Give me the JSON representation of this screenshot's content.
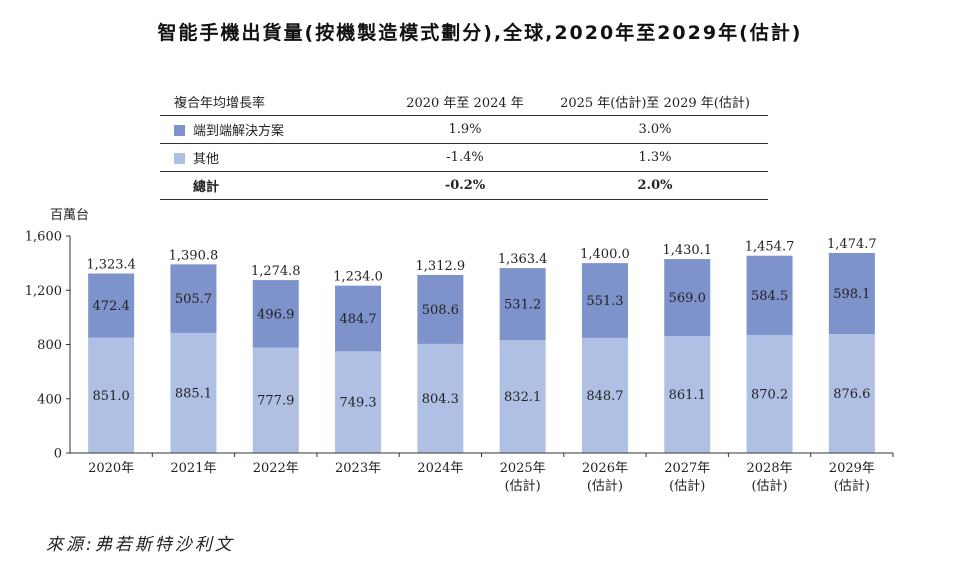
{
  "title": "智能手機出貨量(按機製造模式劃分),全球,2020年至2029年(估計)",
  "cagr_table": {
    "header": [
      "複合年均增長率",
      "2020 年至 2024 年",
      "2025 年(估計)至 2029 年(估計)"
    ],
    "rows": [
      {
        "label": "端到端解決方案",
        "v1": "1.9%",
        "v2": "3.0%"
      },
      {
        "label": "其他",
        "v1": "-1.4%",
        "v2": "1.3%"
      },
      {
        "label": "總計",
        "v1": "-0.2%",
        "v2": "2.0%"
      }
    ]
  },
  "source": "來源:弗若斯特沙利文",
  "colors": {
    "end_to_end": "#7e92cb",
    "other": "#b0c0e4",
    "axis": "#333333"
  },
  "chart_data": {
    "type": "bar",
    "stacked": true,
    "ylabel": "百萬台",
    "ylim": [
      0,
      1600
    ],
    "yticks": [
      0,
      400,
      800,
      1200,
      1600
    ],
    "ytick_labels": [
      "0",
      "400",
      "800",
      "1,200",
      "1,600"
    ],
    "categories": [
      "2020年",
      "2021年",
      "2022年",
      "2023年",
      "2024年",
      "2025年",
      "2026年",
      "2027年",
      "2028年",
      "2029年"
    ],
    "category_sublabels": [
      "",
      "",
      "",
      "",
      "",
      "(估計)",
      "(估計)",
      "(估計)",
      "(估計)",
      "(估計)"
    ],
    "series": [
      {
        "name": "其他",
        "values": [
          851.0,
          885.1,
          777.9,
          749.3,
          804.3,
          832.1,
          848.7,
          861.1,
          870.2,
          876.6
        ],
        "labels": [
          "851.0",
          "885.1",
          "777.9",
          "749.3",
          "804.3",
          "832.1",
          "848.7",
          "861.1",
          "870.2",
          "876.6"
        ]
      },
      {
        "name": "端到端解決方案",
        "values": [
          472.4,
          505.7,
          496.9,
          484.7,
          508.6,
          531.2,
          551.3,
          569.0,
          584.5,
          598.1
        ],
        "labels": [
          "472.4",
          "505.7",
          "496.9",
          "484.7",
          "508.6",
          "531.2",
          "551.3",
          "569.0",
          "584.5",
          "598.1"
        ]
      }
    ],
    "totals": [
      1323.4,
      1390.8,
      1274.8,
      1234.0,
      1312.9,
      1363.4,
      1400.0,
      1430.1,
      1454.7,
      1474.7
    ],
    "total_labels": [
      "1,323.4",
      "1,390.8",
      "1,274.8",
      "1,234.0",
      "1,312.9",
      "1,363.4",
      "1,400.0",
      "1,430.1",
      "1,454.7",
      "1,474.7"
    ],
    "legend": "table",
    "grid": false
  }
}
